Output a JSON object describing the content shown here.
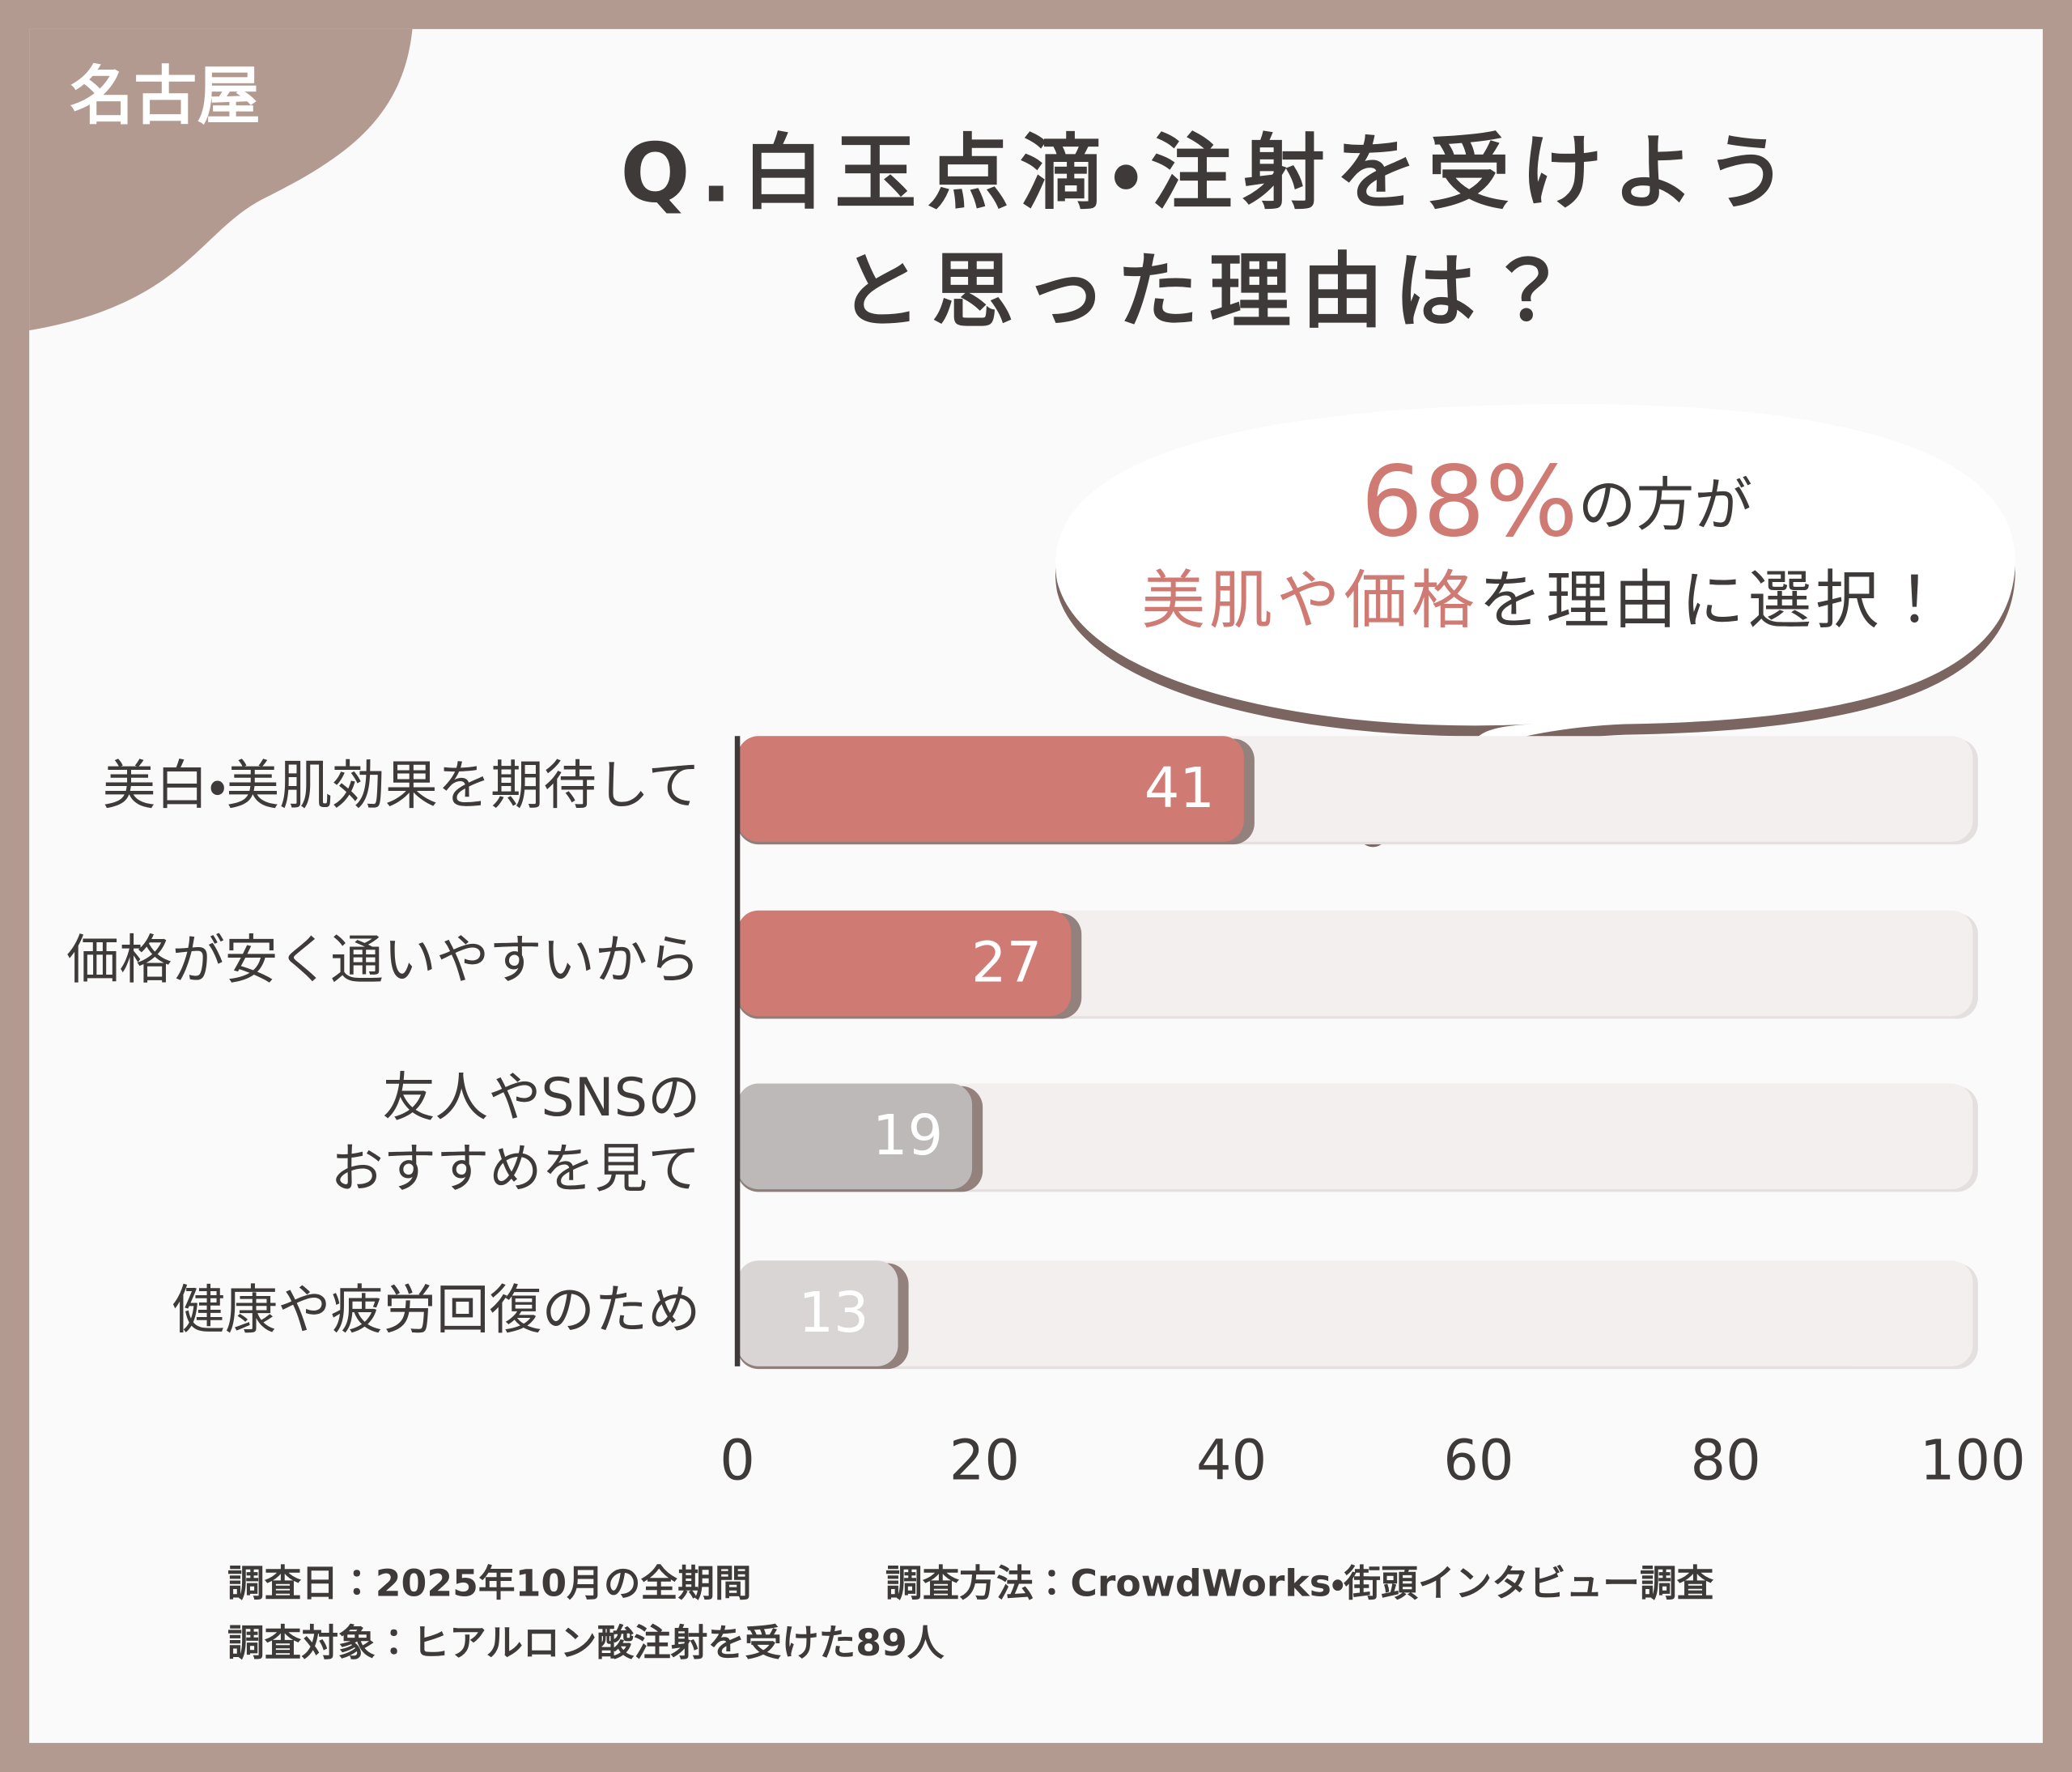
{
  "corner_label": "名古屋",
  "chart_data": {
    "type": "hbar",
    "title": "Q.白玉点滴・注射を受けよう\nと思った理由は？",
    "categories": [
      "美白・美肌効果を期待して",
      "価格が安く通いやすいから",
      "友人やSNSの\nおすすめを見て",
      "健康や疲労回復のため"
    ],
    "values": [
      41,
      27,
      19,
      13
    ],
    "colors": [
      "#d07a74",
      "#d07a74",
      "#bdb9b8",
      "#d8d5d4"
    ],
    "xlim": [
      0,
      100
    ],
    "xticks": [
      0,
      20,
      40,
      60,
      80,
      100
    ],
    "annotation": {
      "highlight_1": "68%",
      "text_1": "の方が",
      "highlight_2": "美肌や価格",
      "text_2": "を理由に選択！"
    }
  },
  "footnotes": [
    "調査日：2025年10月の全期間",
    "調査方法：CrowdWorks・街頭インタビュー調査",
    "調査対象：ヒアルロン酸注射を受けた89人"
  ]
}
